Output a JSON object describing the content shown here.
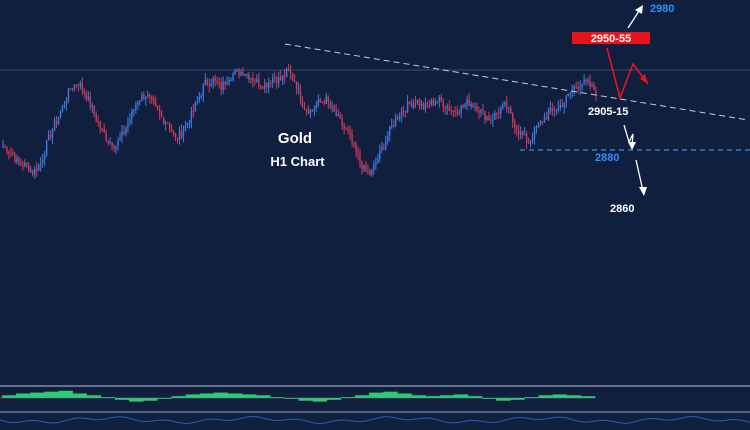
{
  "chart_data": {
    "type": "candlestick",
    "title": "Gold",
    "subtitle": "H1 Chart",
    "colors": {
      "background": "#0f1f3d",
      "bull_candle": "#3f7be0",
      "bear_candle": "#d43a55",
      "trendline": "#c9ced8",
      "support_line": "#3a8ee8",
      "resistance_box": "#e8141c",
      "histogram": "#2ecc71",
      "projection_red": "#e8141c",
      "projection_white": "#ffffff",
      "label_blue": "#2f8fff",
      "label_white": "#ffffff",
      "panel_divider": "#9aa4b8"
    },
    "price_path": [
      2895,
      2890,
      2880,
      2878,
      2872,
      2880,
      2900,
      2915,
      2930,
      2945,
      2950,
      2940,
      2925,
      2910,
      2900,
      2895,
      2905,
      2920,
      2935,
      2940,
      2930,
      2920,
      2915,
      2900,
      2908,
      2920,
      2935,
      2950,
      2952,
      2945,
      2955,
      2958,
      2960,
      2955,
      2950,
      2948,
      2955,
      2952,
      2960,
      2950,
      2930,
      2925,
      2932,
      2935,
      2925,
      2915,
      2905,
      2890,
      2875,
      2870,
      2885,
      2900,
      2915,
      2925,
      2930,
      2935,
      2928,
      2932,
      2935,
      2930,
      2925,
      2928,
      2933,
      2930,
      2922,
      2918,
      2925,
      2930,
      2915,
      2905,
      2898,
      2910,
      2918,
      2925,
      2928,
      2935,
      2945,
      2950,
      2948,
      2942
    ],
    "levels": {
      "target_up": "2980",
      "resistance": "2950-55",
      "pivot": "2905-15",
      "support": "2880",
      "target_down": "2860"
    },
    "indicator": {
      "type": "histogram",
      "values": [
        0.3,
        0.5,
        0.6,
        0.7,
        0.8,
        0.5,
        0.3,
        0.1,
        -0.2,
        -0.4,
        -0.3,
        -0.1,
        0.2,
        0.4,
        0.5,
        0.6,
        0.5,
        0.4,
        0.3,
        0.1,
        -0.1,
        -0.3,
        -0.4,
        -0.2,
        0.1,
        0.3,
        0.6,
        0.7,
        0.5,
        0.3,
        0.2,
        0.3,
        0.4,
        0.2,
        -0.1,
        -0.3,
        -0.2,
        0.1,
        0.3,
        0.4,
        0.3,
        0.2
      ]
    }
  }
}
